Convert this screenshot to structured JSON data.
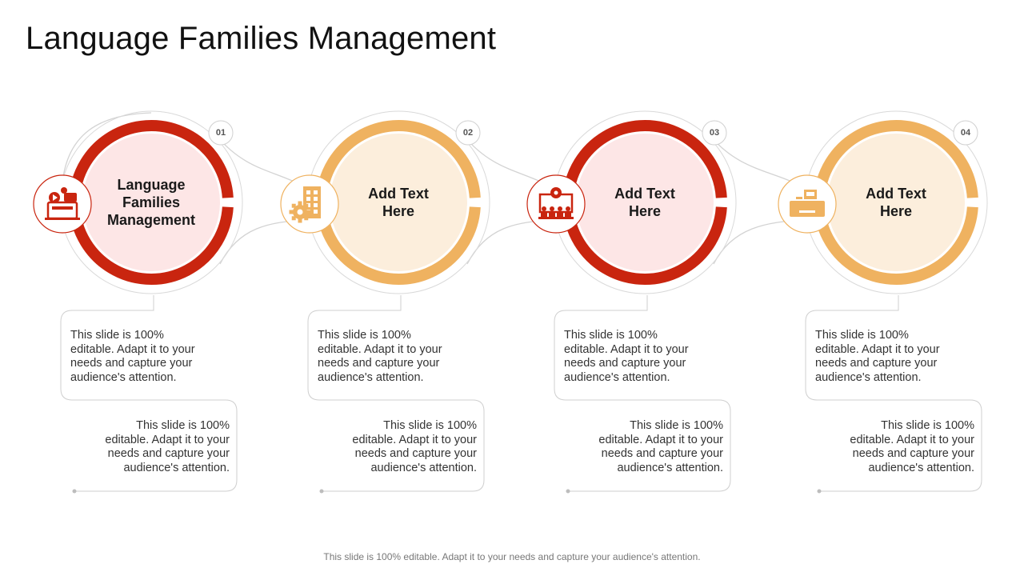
{
  "title": "Language Families Management",
  "footer": "This slide is 100% editable. Adapt it to your needs and capture your audience's attention.",
  "colors": {
    "red": "#C9250F",
    "orange": "#EFB260",
    "red_fill": "#FDE6E6",
    "orange_fill": "#FCEEDC",
    "connector": "#D3D3D3"
  },
  "steps": [
    {
      "number": "01",
      "label": "Language Families Management",
      "theme": "red",
      "icon": "video-chat-computer-icon",
      "text_top": "This slide is 100% editable. Adapt it to your needs and capture your audience's attention.",
      "text_bottom": "This slide is 100% editable. Adapt it to your needs and capture your audience's attention."
    },
    {
      "number": "02",
      "label": "Add Text Here",
      "theme": "orange",
      "icon": "building-gear-icon",
      "text_top": "This slide is 100% editable. Adapt it to your needs and capture your audience's attention.",
      "text_bottom": "This slide is 100% editable. Adapt it to your needs and capture your audience's attention."
    },
    {
      "number": "03",
      "label": "Add Text Here",
      "theme": "red",
      "icon": "presentation-team-icon",
      "text_top": "This slide is 100% editable. Adapt it to your needs and capture your audience's attention.",
      "text_bottom": "This slide is 100% editable. Adapt it to your needs and capture your audience's attention."
    },
    {
      "number": "04",
      "label": "Add Text Here",
      "theme": "orange",
      "icon": "cash-register-icon",
      "text_top": "This slide is 100% editable. Adapt it to your needs and capture your audience's attention.",
      "text_bottom": "This slide is 100% editable. Adapt it to your needs and capture your audience's attention."
    }
  ]
}
